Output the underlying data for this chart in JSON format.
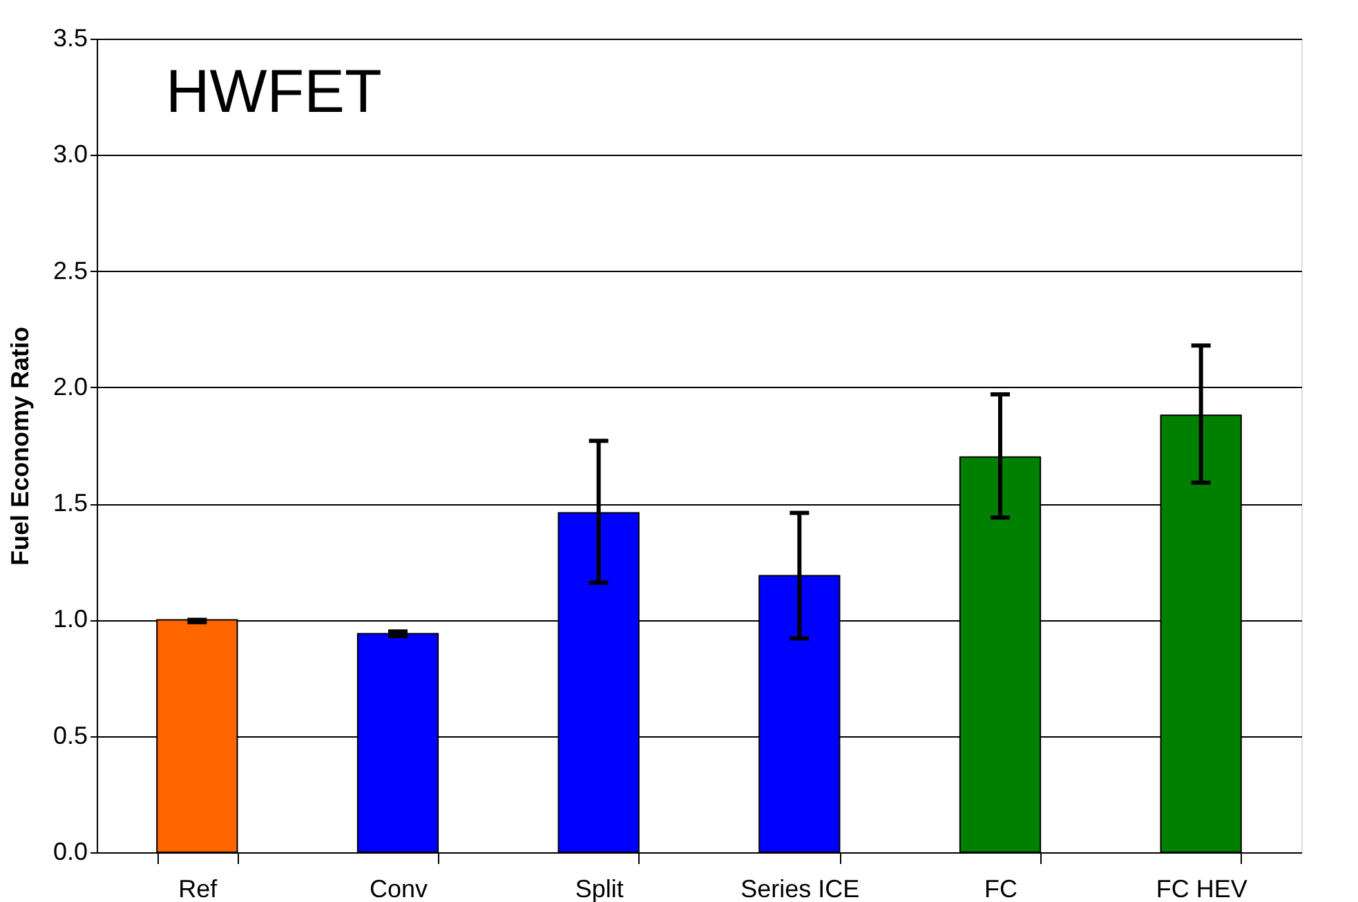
{
  "chart_data": {
    "type": "bar",
    "title": "HWFET",
    "ylabel": "Fuel Economy Ratio",
    "categories": [
      "Ref",
      "Conv",
      "Split",
      "Series ICE",
      "FC",
      "FC HEV"
    ],
    "values": [
      1.0,
      0.94,
      1.46,
      1.19,
      1.7,
      1.88
    ],
    "colors": [
      "#ff6600",
      "#0000ff",
      "#0000ff",
      "#0000ff",
      "#008000",
      "#008000"
    ],
    "errors": [
      [
        0.99,
        1.0
      ],
      [
        0.93,
        0.95
      ],
      [
        1.16,
        1.77
      ],
      [
        0.92,
        1.46
      ],
      [
        1.44,
        1.97
      ],
      [
        1.59,
        2.18
      ]
    ],
    "ylim": [
      0,
      3.5
    ],
    "yticks": [
      {
        "value": 0,
        "label": "0.0"
      },
      {
        "value": 0.5,
        "label": "0.5"
      },
      {
        "value": 1,
        "label": "1.0"
      },
      {
        "value": 1.5,
        "label": "1.5"
      },
      {
        "value": 2,
        "label": "2.0"
      },
      {
        "value": 2.5,
        "label": "2.5"
      },
      {
        "value": 3,
        "label": "3.0"
      },
      {
        "value": 3.5,
        "label": "3.5"
      }
    ],
    "grid": "y"
  }
}
